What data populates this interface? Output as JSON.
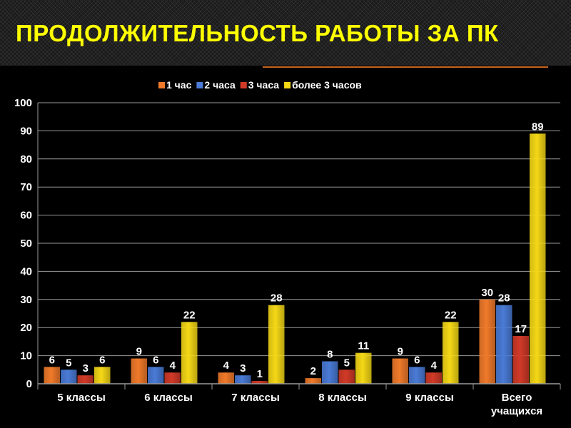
{
  "page": {
    "title": "ПРОДОЛЖИТЕЛЬНОСТЬ РАБОТЫ ЗА ПК"
  },
  "colors": {
    "background": "#000000",
    "title": "#ffff00",
    "rule": "#c8641e",
    "grid": "#9a9a9a",
    "text": "#ffffff"
  },
  "chart_data": {
    "type": "bar",
    "title": "",
    "xlabel": "",
    "ylabel": "",
    "ylim": [
      0,
      100
    ],
    "yticks": [
      0,
      10,
      20,
      30,
      40,
      50,
      60,
      70,
      80,
      90,
      100
    ],
    "grid": true,
    "legend_position": "top-center",
    "categories": [
      "5 классы",
      "6 классы",
      "7 классы",
      "8 классы",
      "9 классы",
      "Всего учащихся"
    ],
    "series": [
      {
        "name": "1 час",
        "color": "#f07a2a",
        "values": [
          6,
          9,
          4,
          2,
          9,
          30
        ]
      },
      {
        "name": "2 часа",
        "color": "#4a7bd6",
        "values": [
          5,
          6,
          3,
          8,
          6,
          28
        ]
      },
      {
        "name": "3 часа",
        "color": "#d23a28",
        "values": [
          3,
          4,
          1,
          5,
          4,
          17
        ]
      },
      {
        "name": "более 3 часов",
        "color": "#f5d816",
        "values": [
          6,
          22,
          28,
          11,
          22,
          89
        ]
      }
    ]
  }
}
